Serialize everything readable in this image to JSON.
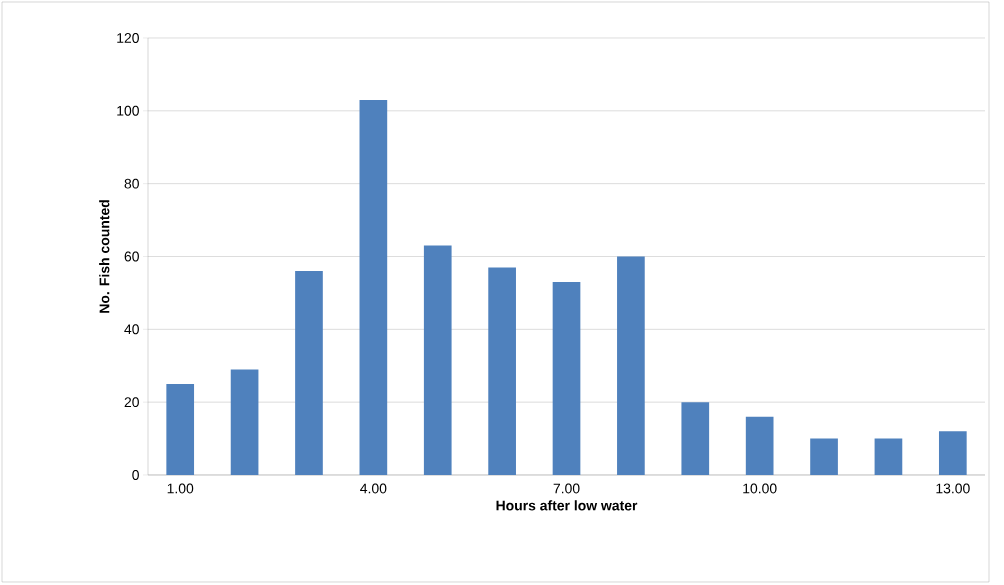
{
  "chart_data": {
    "type": "bar",
    "xlabel": "Hours after low water",
    "ylabel": "No. Fish counted",
    "categories": [
      "1.00",
      null,
      null,
      "4.00",
      null,
      null,
      "7.00",
      null,
      null,
      "10.00",
      null,
      null,
      "13.00"
    ],
    "values": [
      25,
      29,
      56,
      103,
      63,
      57,
      53,
      60,
      20,
      16,
      10,
      10,
      12
    ],
    "color": "#4f81bd",
    "ylim": [
      0,
      120
    ],
    "yticks": [
      0,
      20,
      40,
      60,
      80,
      100,
      120
    ],
    "grid": "y"
  }
}
